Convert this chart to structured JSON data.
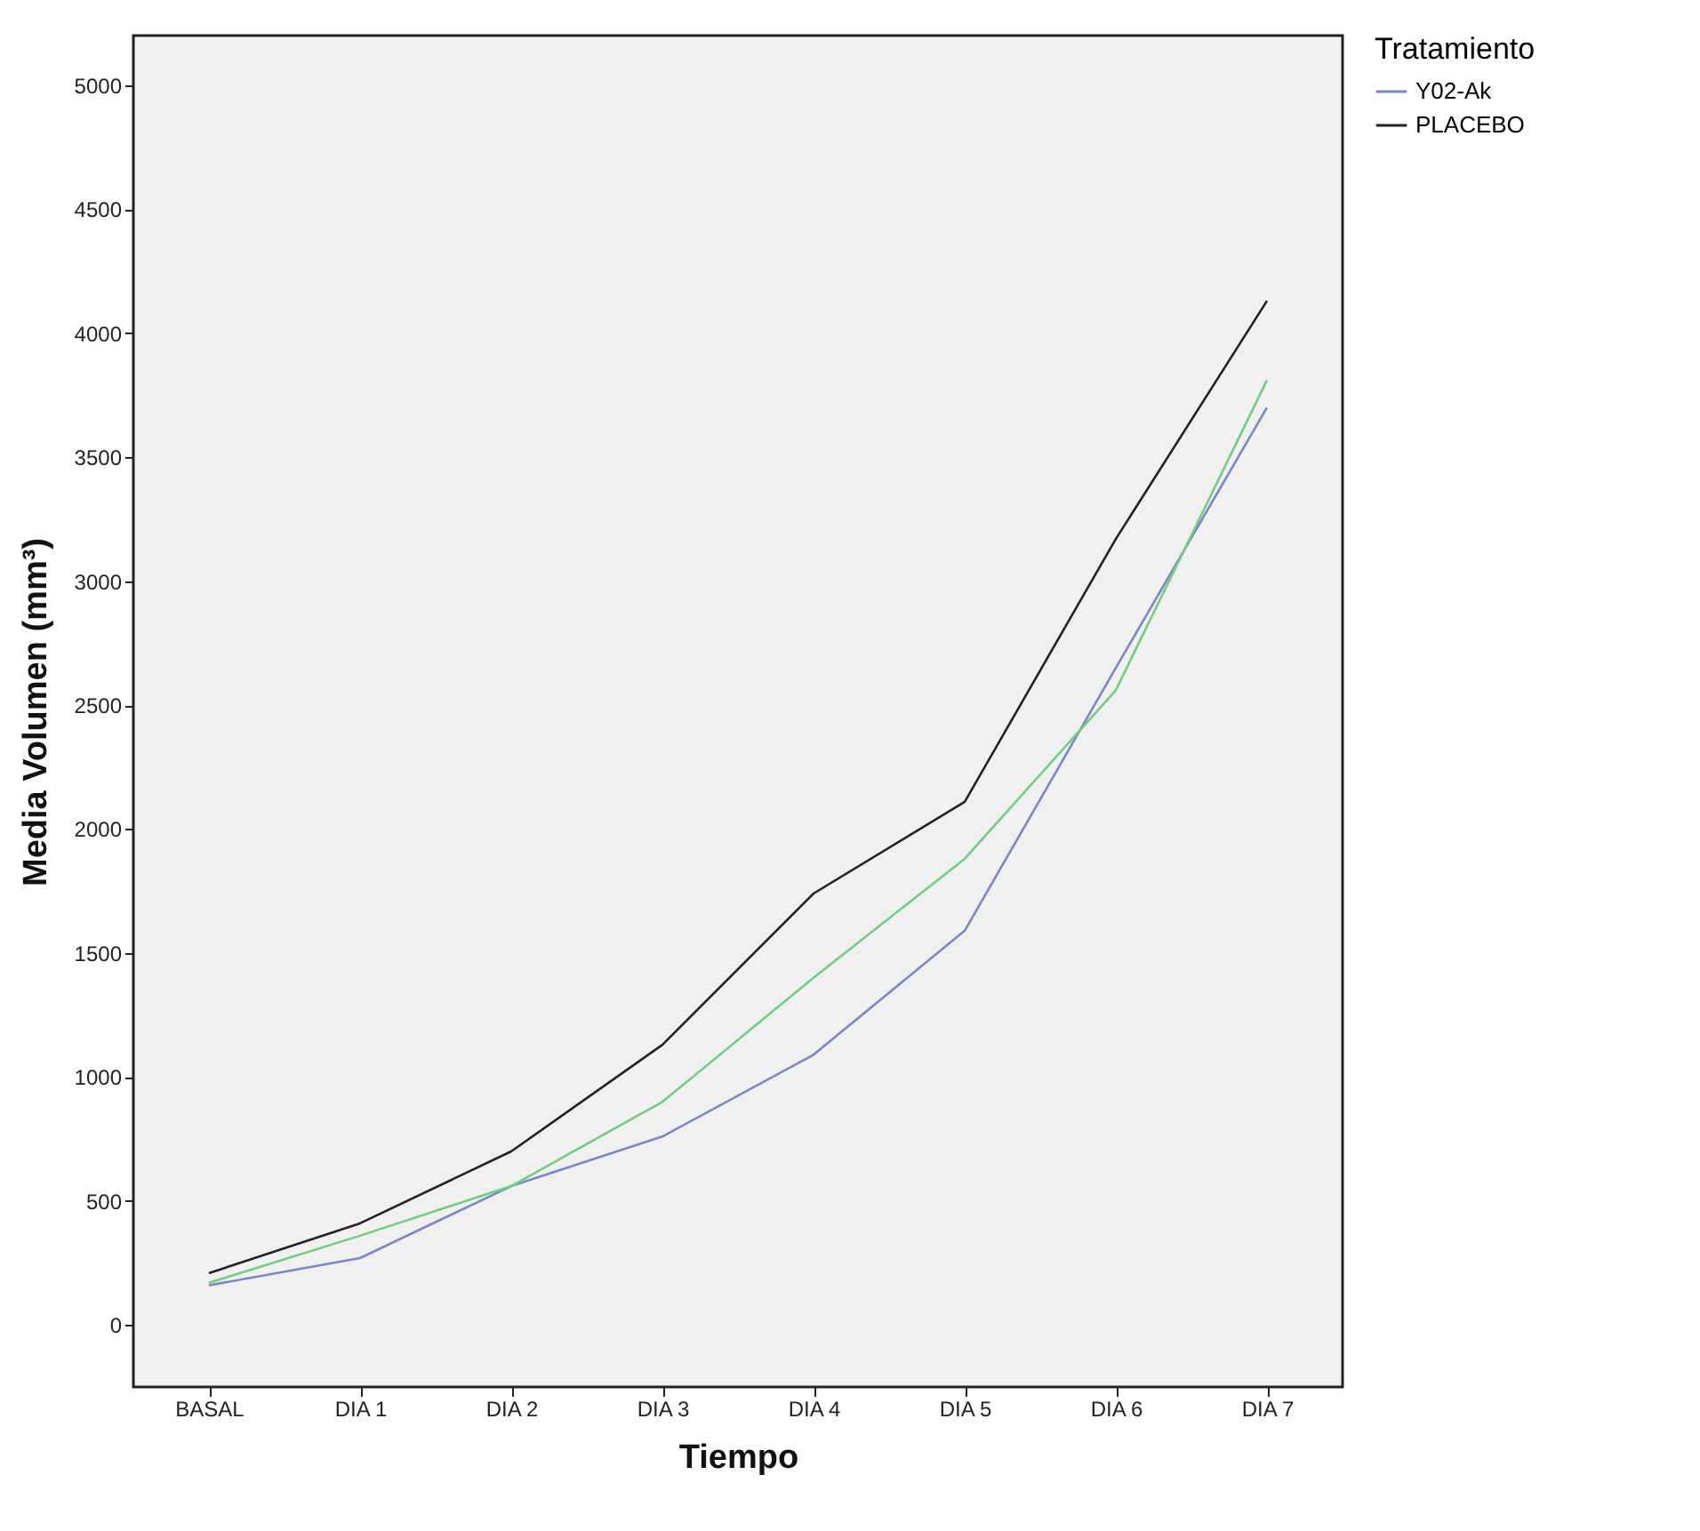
{
  "chart_data": {
    "type": "line",
    "xlabel": "Tiempo",
    "ylabel": "Media Volumen (mm³)",
    "legend_title": "Tratamiento",
    "legend": "right",
    "grid": false,
    "categories": [
      "BASAL",
      "DIA 1",
      "DIA 2",
      "DIA 3",
      "DIA 4",
      "DIA 5",
      "DIA 6",
      "DIA 7"
    ],
    "ylim": [
      -250,
      5200
    ],
    "yticks": [
      0,
      500,
      1000,
      1500,
      2000,
      2500,
      3000,
      3500,
      4000,
      4500,
      5000
    ],
    "series": [
      {
        "name": "Y02-Ak",
        "color": "#7b86c8",
        "values": [
          160,
          270,
          560,
          760,
          1090,
          1590,
          2650,
          3700
        ]
      },
      {
        "color": "#6fcf7f",
        "values": [
          170,
          360,
          560,
          900,
          1400,
          1880,
          2560,
          3810
        ]
      },
      {
        "name": "PLACEBO",
        "color": "#222222",
        "values": [
          209,
          410,
          700,
          1130,
          1740,
          2110,
          3170,
          4130
        ]
      }
    ]
  }
}
